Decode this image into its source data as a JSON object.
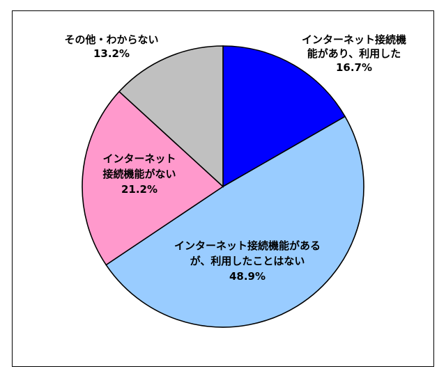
{
  "chart_data": {
    "type": "pie",
    "slices": [
      {
        "label_lines": [
          "インターネット接続機",
          "能があり、利用した"
        ],
        "value_label": "16.7%",
        "value": 16.7,
        "color": "#0000ff"
      },
      {
        "label_lines": [
          "インターネット接続機能がある",
          "が、利用したことはない"
        ],
        "value_label": "48.9%",
        "value": 48.9,
        "color": "#99ccff"
      },
      {
        "label_lines": [
          "インターネット",
          "接続機能がない"
        ],
        "value_label": "21.2%",
        "value": 21.2,
        "color": "#ff99cc"
      },
      {
        "label_lines": [
          "その他・わからない"
        ],
        "value_label": "13.2%",
        "value": 13.2,
        "color": "#c0c0c0"
      }
    ],
    "start": "12 o'clock",
    "direction": "clockwise",
    "legend": "none"
  }
}
